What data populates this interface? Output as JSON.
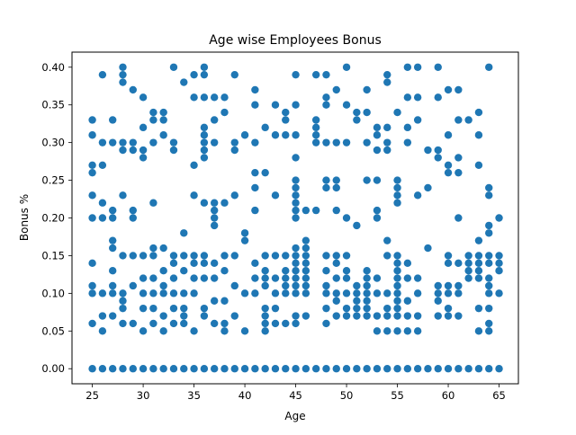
{
  "chart_data": {
    "type": "scatter",
    "title": "Age wise Employees Bonus",
    "xlabel": "Age",
    "ylabel": "Bonus %",
    "xlim": [
      23.0,
      66.9
    ],
    "ylim": [
      -0.02,
      0.42
    ],
    "x_ticks": [
      25,
      30,
      35,
      40,
      45,
      50,
      55,
      60,
      65
    ],
    "y_ticks": [
      "0.00",
      "0.05",
      "0.10",
      "0.15",
      "0.20",
      "0.25",
      "0.30",
      "0.35",
      "0.40"
    ],
    "grid": false,
    "legend": "none",
    "marker_color": "#1f77b4",
    "points": [
      [
        25,
        0.33
      ],
      [
        25,
        0.31
      ],
      [
        25,
        0.27
      ],
      [
        25,
        0.26
      ],
      [
        25,
        0.23
      ],
      [
        25,
        0.2
      ],
      [
        25,
        0.14
      ],
      [
        25,
        0.11
      ],
      [
        25,
        0.1
      ],
      [
        25,
        0.06
      ],
      [
        26,
        0.39
      ],
      [
        26,
        0.3
      ],
      [
        26,
        0.27
      ],
      [
        26,
        0.22
      ],
      [
        26,
        0.2
      ],
      [
        26,
        0.1
      ],
      [
        26,
        0.07
      ],
      [
        26,
        0.05
      ],
      [
        27,
        0.33
      ],
      [
        27,
        0.3
      ],
      [
        27,
        0.21
      ],
      [
        27,
        0.2
      ],
      [
        27,
        0.17
      ],
      [
        27,
        0.16
      ],
      [
        27,
        0.13
      ],
      [
        27,
        0.11
      ],
      [
        27,
        0.1
      ],
      [
        27,
        0.07
      ],
      [
        28,
        0.4
      ],
      [
        28,
        0.39
      ],
      [
        28,
        0.38
      ],
      [
        28,
        0.3
      ],
      [
        28,
        0.29
      ],
      [
        28,
        0.23
      ],
      [
        28,
        0.15
      ],
      [
        28,
        0.1
      ],
      [
        28,
        0.09
      ],
      [
        28,
        0.08
      ],
      [
        28,
        0.06
      ],
      [
        29,
        0.37
      ],
      [
        29,
        0.3
      ],
      [
        29,
        0.29
      ],
      [
        29,
        0.21
      ],
      [
        29,
        0.2
      ],
      [
        29,
        0.15
      ],
      [
        29,
        0.11
      ],
      [
        29,
        0.06
      ],
      [
        30,
        0.36
      ],
      [
        30,
        0.32
      ],
      [
        30,
        0.29
      ],
      [
        30,
        0.28
      ],
      [
        30,
        0.15
      ],
      [
        30,
        0.12
      ],
      [
        30,
        0.1
      ],
      [
        30,
        0.08
      ],
      [
        30,
        0.05
      ],
      [
        31,
        0.34
      ],
      [
        31,
        0.33
      ],
      [
        31,
        0.3
      ],
      [
        31,
        0.22
      ],
      [
        31,
        0.16
      ],
      [
        31,
        0.15
      ],
      [
        31,
        0.12
      ],
      [
        31,
        0.1
      ],
      [
        31,
        0.08
      ],
      [
        31,
        0.06
      ],
      [
        32,
        0.34
      ],
      [
        32,
        0.33
      ],
      [
        32,
        0.31
      ],
      [
        32,
        0.16
      ],
      [
        32,
        0.13
      ],
      [
        32,
        0.11
      ],
      [
        32,
        0.1
      ],
      [
        32,
        0.07
      ],
      [
        32,
        0.05
      ],
      [
        33,
        0.4
      ],
      [
        33,
        0.3
      ],
      [
        33,
        0.29
      ],
      [
        33,
        0.15
      ],
      [
        33,
        0.14
      ],
      [
        33,
        0.12
      ],
      [
        33,
        0.1
      ],
      [
        33,
        0.08
      ],
      [
        33,
        0.06
      ],
      [
        34,
        0.38
      ],
      [
        34,
        0.18
      ],
      [
        34,
        0.15
      ],
      [
        34,
        0.13
      ],
      [
        34,
        0.1
      ],
      [
        34,
        0.08
      ],
      [
        34,
        0.07
      ],
      [
        34,
        0.06
      ],
      [
        35,
        0.39
      ],
      [
        35,
        0.36
      ],
      [
        35,
        0.27
      ],
      [
        35,
        0.23
      ],
      [
        35,
        0.15
      ],
      [
        35,
        0.14
      ],
      [
        35,
        0.12
      ],
      [
        35,
        0.1
      ],
      [
        35,
        0.05
      ],
      [
        36,
        0.4
      ],
      [
        36,
        0.39
      ],
      [
        36,
        0.36
      ],
      [
        36,
        0.32
      ],
      [
        36,
        0.31
      ],
      [
        36,
        0.3
      ],
      [
        36,
        0.29
      ],
      [
        36,
        0.28
      ],
      [
        36,
        0.22
      ],
      [
        36,
        0.15
      ],
      [
        36,
        0.14
      ],
      [
        36,
        0.12
      ],
      [
        36,
        0.08
      ],
      [
        36,
        0.07
      ],
      [
        37,
        0.36
      ],
      [
        37,
        0.33
      ],
      [
        37,
        0.3
      ],
      [
        37,
        0.22
      ],
      [
        37,
        0.21
      ],
      [
        37,
        0.2
      ],
      [
        37,
        0.19
      ],
      [
        37,
        0.14
      ],
      [
        37,
        0.12
      ],
      [
        37,
        0.09
      ],
      [
        37,
        0.06
      ],
      [
        38,
        0.36
      ],
      [
        38,
        0.34
      ],
      [
        38,
        0.22
      ],
      [
        38,
        0.15
      ],
      [
        38,
        0.13
      ],
      [
        38,
        0.09
      ],
      [
        38,
        0.06
      ],
      [
        38,
        0.05
      ],
      [
        39,
        0.39
      ],
      [
        39,
        0.3
      ],
      [
        39,
        0.29
      ],
      [
        39,
        0.23
      ],
      [
        39,
        0.15
      ],
      [
        39,
        0.11
      ],
      [
        39,
        0.07
      ],
      [
        40,
        0.31
      ],
      [
        40,
        0.18
      ],
      [
        40,
        0.17
      ],
      [
        40,
        0.1
      ],
      [
        40,
        0.05
      ],
      [
        41,
        0.37
      ],
      [
        41,
        0.35
      ],
      [
        41,
        0.3
      ],
      [
        41,
        0.26
      ],
      [
        41,
        0.24
      ],
      [
        41,
        0.21
      ],
      [
        41,
        0.14
      ],
      [
        41,
        0.12
      ],
      [
        41,
        0.1
      ],
      [
        42,
        0.32
      ],
      [
        42,
        0.26
      ],
      [
        42,
        0.15
      ],
      [
        42,
        0.13
      ],
      [
        42,
        0.12
      ],
      [
        42,
        0.11
      ],
      [
        42,
        0.08
      ],
      [
        42,
        0.07
      ],
      [
        42,
        0.06
      ],
      [
        42,
        0.05
      ],
      [
        43,
        0.35
      ],
      [
        43,
        0.31
      ],
      [
        43,
        0.23
      ],
      [
        43,
        0.15
      ],
      [
        43,
        0.12
      ],
      [
        43,
        0.1
      ],
      [
        43,
        0.08
      ],
      [
        43,
        0.06
      ],
      [
        44,
        0.34
      ],
      [
        44,
        0.33
      ],
      [
        44,
        0.31
      ],
      [
        44,
        0.15
      ],
      [
        44,
        0.13
      ],
      [
        44,
        0.12
      ],
      [
        44,
        0.11
      ],
      [
        44,
        0.1
      ],
      [
        44,
        0.06
      ],
      [
        45,
        0.39
      ],
      [
        45,
        0.35
      ],
      [
        45,
        0.31
      ],
      [
        45,
        0.28
      ],
      [
        45,
        0.25
      ],
      [
        45,
        0.24
      ],
      [
        45,
        0.23
      ],
      [
        45,
        0.22
      ],
      [
        45,
        0.21
      ],
      [
        45,
        0.2
      ],
      [
        45,
        0.16
      ],
      [
        45,
        0.15
      ],
      [
        45,
        0.14
      ],
      [
        45,
        0.13
      ],
      [
        45,
        0.12
      ],
      [
        45,
        0.11
      ],
      [
        45,
        0.1
      ],
      [
        45,
        0.07
      ],
      [
        45,
        0.06
      ],
      [
        46,
        0.21
      ],
      [
        46,
        0.17
      ],
      [
        46,
        0.16
      ],
      [
        46,
        0.15
      ],
      [
        46,
        0.14
      ],
      [
        46,
        0.13
      ],
      [
        46,
        0.12
      ],
      [
        46,
        0.11
      ],
      [
        46,
        0.1
      ],
      [
        46,
        0.07
      ],
      [
        47,
        0.39
      ],
      [
        47,
        0.33
      ],
      [
        47,
        0.32
      ],
      [
        47,
        0.31
      ],
      [
        47,
        0.3
      ],
      [
        47,
        0.21
      ],
      [
        48,
        0.39
      ],
      [
        48,
        0.36
      ],
      [
        48,
        0.35
      ],
      [
        48,
        0.3
      ],
      [
        48,
        0.25
      ],
      [
        48,
        0.24
      ],
      [
        48,
        0.15
      ],
      [
        48,
        0.13
      ],
      [
        48,
        0.11
      ],
      [
        48,
        0.1
      ],
      [
        48,
        0.08
      ],
      [
        48,
        0.06
      ],
      [
        49,
        0.37
      ],
      [
        49,
        0.3
      ],
      [
        49,
        0.25
      ],
      [
        49,
        0.24
      ],
      [
        49,
        0.21
      ],
      [
        49,
        0.15
      ],
      [
        49,
        0.14
      ],
      [
        49,
        0.12
      ],
      [
        49,
        0.1
      ],
      [
        49,
        0.09
      ],
      [
        49,
        0.07
      ],
      [
        50,
        0.4
      ],
      [
        50,
        0.35
      ],
      [
        50,
        0.3
      ],
      [
        50,
        0.2
      ],
      [
        50,
        0.15
      ],
      [
        50,
        0.13
      ],
      [
        50,
        0.12
      ],
      [
        50,
        0.1
      ],
      [
        50,
        0.08
      ],
      [
        50,
        0.07
      ],
      [
        51,
        0.34
      ],
      [
        51,
        0.33
      ],
      [
        51,
        0.19
      ],
      [
        51,
        0.11
      ],
      [
        51,
        0.1
      ],
      [
        51,
        0.09
      ],
      [
        51,
        0.08
      ],
      [
        51,
        0.07
      ],
      [
        52,
        0.37
      ],
      [
        52,
        0.34
      ],
      [
        52,
        0.3
      ],
      [
        52,
        0.25
      ],
      [
        52,
        0.13
      ],
      [
        52,
        0.12
      ],
      [
        52,
        0.11
      ],
      [
        52,
        0.1
      ],
      [
        52,
        0.09
      ],
      [
        52,
        0.08
      ],
      [
        52,
        0.07
      ],
      [
        53,
        0.32
      ],
      [
        53,
        0.31
      ],
      [
        53,
        0.29
      ],
      [
        53,
        0.25
      ],
      [
        53,
        0.21
      ],
      [
        53,
        0.2
      ],
      [
        53,
        0.12
      ],
      [
        53,
        0.1
      ],
      [
        53,
        0.07
      ],
      [
        53,
        0.05
      ],
      [
        54,
        0.39
      ],
      [
        54,
        0.38
      ],
      [
        54,
        0.32
      ],
      [
        54,
        0.3
      ],
      [
        54,
        0.29
      ],
      [
        54,
        0.17
      ],
      [
        54,
        0.15
      ],
      [
        54,
        0.1
      ],
      [
        54,
        0.08
      ],
      [
        54,
        0.07
      ],
      [
        54,
        0.05
      ],
      [
        55,
        0.34
      ],
      [
        55,
        0.25
      ],
      [
        55,
        0.24
      ],
      [
        55,
        0.23
      ],
      [
        55,
        0.22
      ],
      [
        55,
        0.15
      ],
      [
        55,
        0.14
      ],
      [
        55,
        0.13
      ],
      [
        55,
        0.12
      ],
      [
        55,
        0.11
      ],
      [
        55,
        0.1
      ],
      [
        55,
        0.09
      ],
      [
        55,
        0.08
      ],
      [
        55,
        0.07
      ],
      [
        55,
        0.05
      ],
      [
        56,
        0.4
      ],
      [
        56,
        0.36
      ],
      [
        56,
        0.32
      ],
      [
        56,
        0.3
      ],
      [
        56,
        0.14
      ],
      [
        56,
        0.12
      ],
      [
        56,
        0.09
      ],
      [
        56,
        0.07
      ],
      [
        56,
        0.05
      ],
      [
        57,
        0.4
      ],
      [
        57,
        0.36
      ],
      [
        57,
        0.33
      ],
      [
        57,
        0.23
      ],
      [
        57,
        0.12
      ],
      [
        57,
        0.1
      ],
      [
        57,
        0.07
      ],
      [
        57,
        0.05
      ],
      [
        58,
        0.29
      ],
      [
        58,
        0.24
      ],
      [
        58,
        0.16
      ],
      [
        59,
        0.4
      ],
      [
        59,
        0.36
      ],
      [
        59,
        0.29
      ],
      [
        59,
        0.28
      ],
      [
        59,
        0.11
      ],
      [
        59,
        0.1
      ],
      [
        59,
        0.09
      ],
      [
        59,
        0.07
      ],
      [
        60,
        0.37
      ],
      [
        60,
        0.31
      ],
      [
        60,
        0.27
      ],
      [
        60,
        0.26
      ],
      [
        60,
        0.15
      ],
      [
        60,
        0.14
      ],
      [
        60,
        0.11
      ],
      [
        60,
        0.1
      ],
      [
        60,
        0.08
      ],
      [
        60,
        0.07
      ],
      [
        61,
        0.37
      ],
      [
        61,
        0.33
      ],
      [
        61,
        0.28
      ],
      [
        61,
        0.26
      ],
      [
        61,
        0.2
      ],
      [
        61,
        0.14
      ],
      [
        61,
        0.11
      ],
      [
        61,
        0.1
      ],
      [
        61,
        0.07
      ],
      [
        62,
        0.33
      ],
      [
        62,
        0.15
      ],
      [
        62,
        0.14
      ],
      [
        62,
        0.13
      ],
      [
        62,
        0.12
      ],
      [
        63,
        0.34
      ],
      [
        63,
        0.31
      ],
      [
        63,
        0.27
      ],
      [
        63,
        0.17
      ],
      [
        63,
        0.15
      ],
      [
        63,
        0.14
      ],
      [
        63,
        0.13
      ],
      [
        63,
        0.12
      ],
      [
        63,
        0.08
      ],
      [
        63,
        0.05
      ],
      [
        64,
        0.4
      ],
      [
        64,
        0.24
      ],
      [
        64,
        0.23
      ],
      [
        64,
        0.19
      ],
      [
        64,
        0.18
      ],
      [
        64,
        0.15
      ],
      [
        64,
        0.14
      ],
      [
        64,
        0.12
      ],
      [
        64,
        0.11
      ],
      [
        64,
        0.1
      ],
      [
        64,
        0.08
      ],
      [
        64,
        0.06
      ],
      [
        64,
        0.05
      ],
      [
        65,
        0.2
      ],
      [
        65,
        0.15
      ],
      [
        65,
        0.14
      ],
      [
        65,
        0.13
      ],
      [
        65,
        0.1
      ]
    ],
    "zero_bonus_ages": [
      25,
      26,
      27,
      28,
      29,
      30,
      31,
      32,
      33,
      34,
      35,
      36,
      37,
      38,
      39,
      40,
      41,
      42,
      43,
      44,
      45,
      46,
      47,
      48,
      49,
      50,
      51,
      52,
      53,
      54,
      55,
      56,
      57,
      58,
      59,
      60,
      61,
      62,
      63,
      64,
      65
    ]
  }
}
